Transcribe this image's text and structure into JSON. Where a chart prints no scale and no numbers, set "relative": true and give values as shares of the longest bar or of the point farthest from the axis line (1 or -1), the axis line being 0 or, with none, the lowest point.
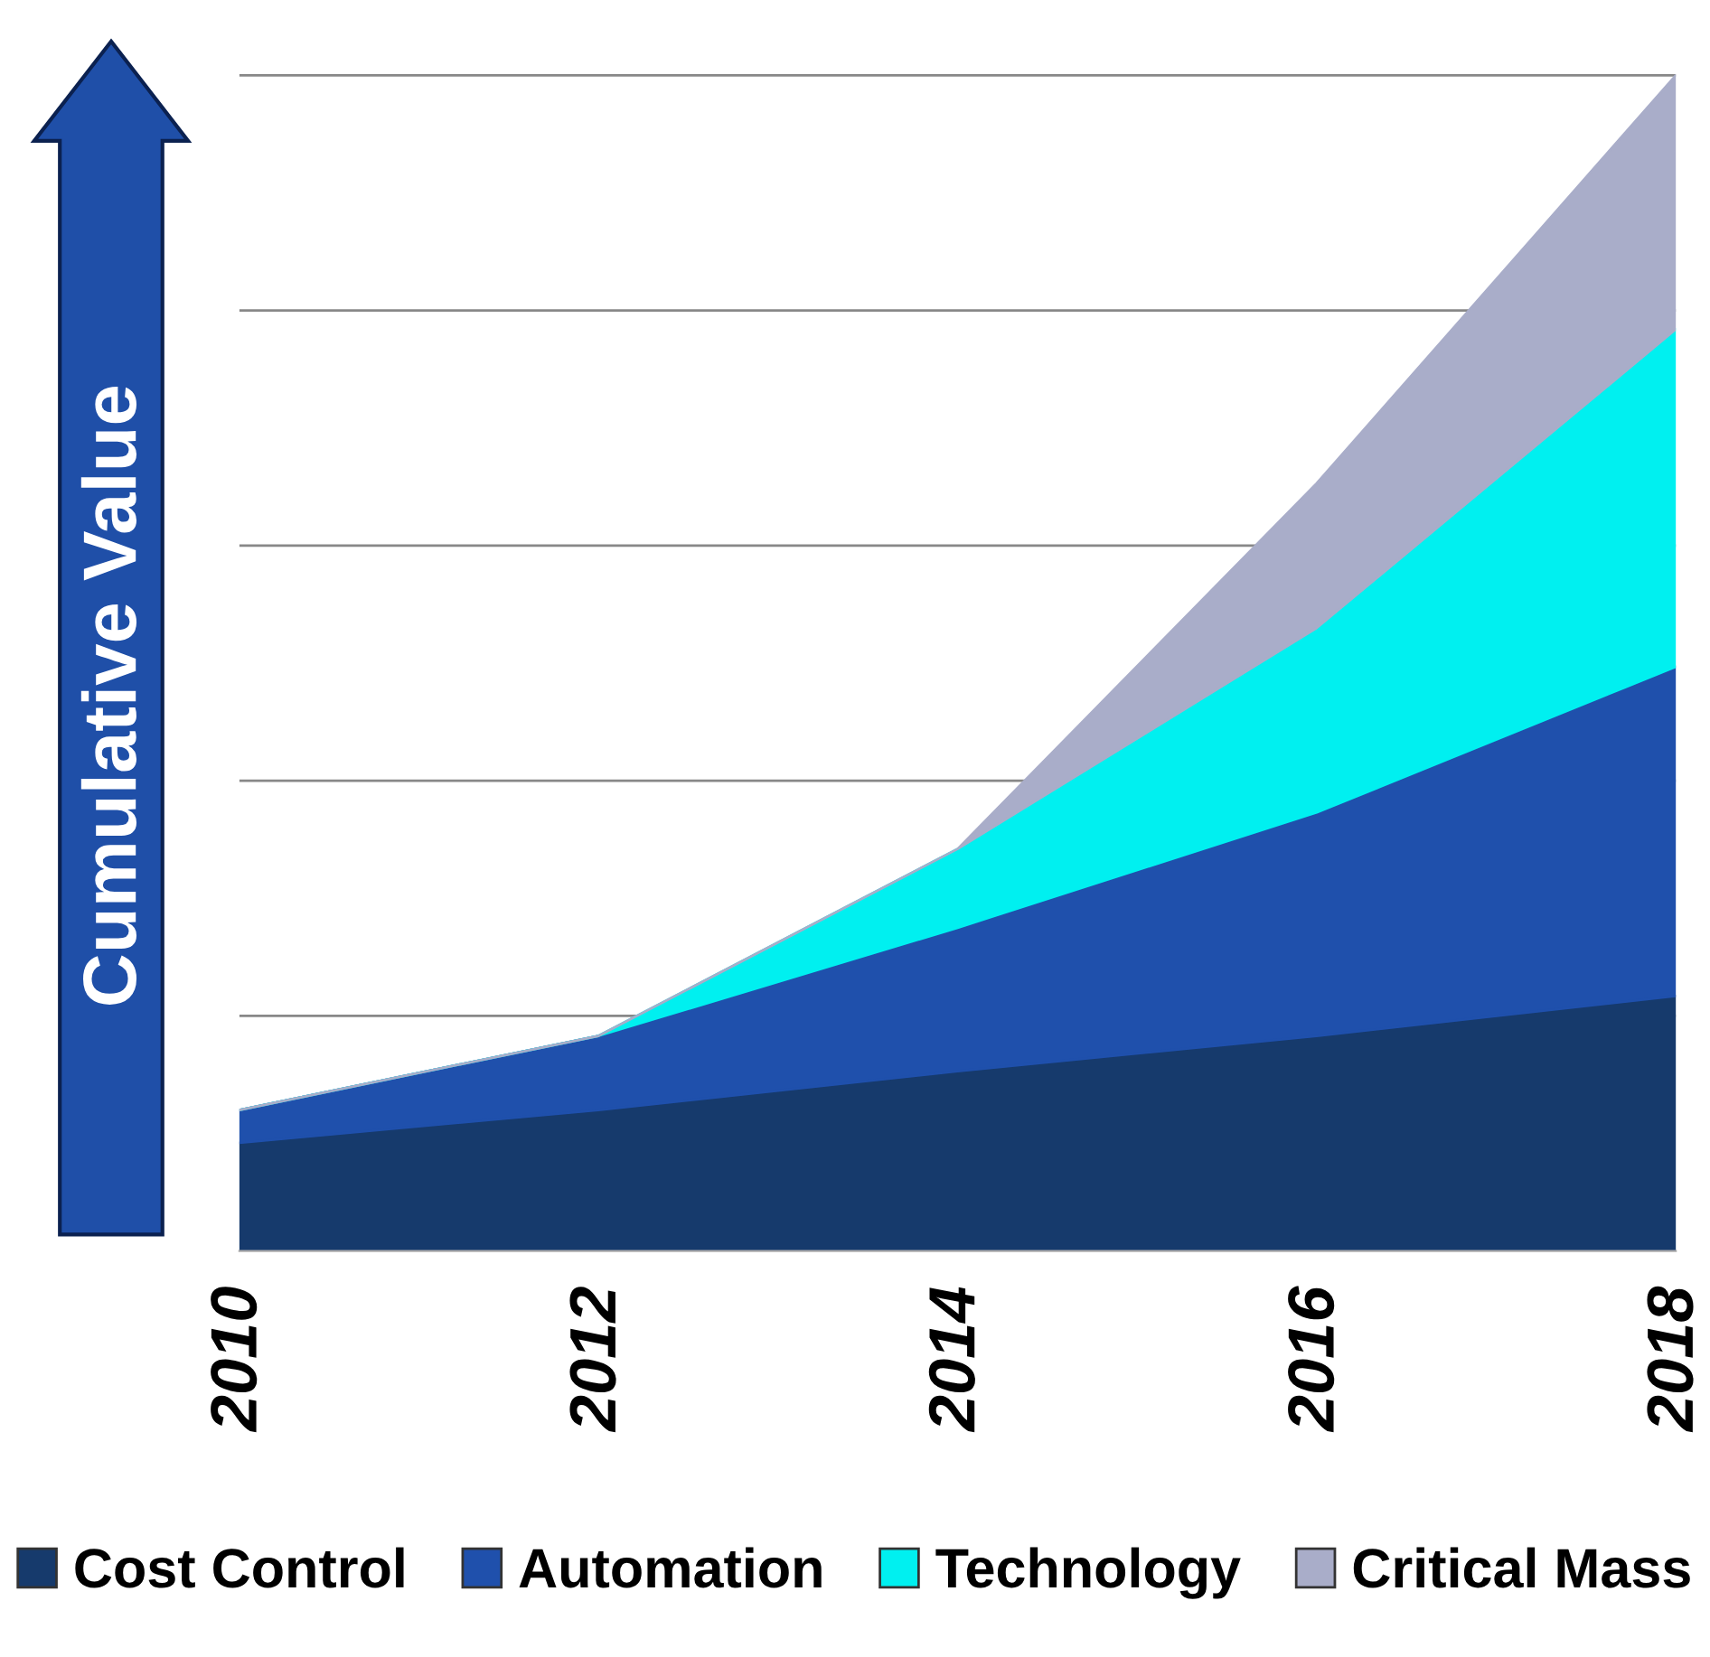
{
  "chart_data": {
    "type": "area",
    "stacked": true,
    "relative": true,
    "ylabel": "Cumulative Value",
    "categories": [
      "2010",
      "2012",
      "2014",
      "2016",
      "2018"
    ],
    "series": [
      {
        "name": "Cost Control",
        "color": "#163a6c",
        "values": [
          0.092,
          0.12,
          0.153,
          0.183,
          0.217
        ]
      },
      {
        "name": "Automation",
        "color": "#1f50ac",
        "values": [
          0.028,
          0.063,
          0.122,
          0.19,
          0.28
        ]
      },
      {
        "name": "Technology",
        "color": "#00f0f0",
        "values": [
          0,
          0,
          0.067,
          0.157,
          0.287
        ]
      },
      {
        "name": "Critical Mass",
        "color": "#a9adc9",
        "values": [
          0,
          0,
          0,
          0.123,
          0.216
        ]
      }
    ],
    "grid": "y",
    "legend": "bottom"
  }
}
